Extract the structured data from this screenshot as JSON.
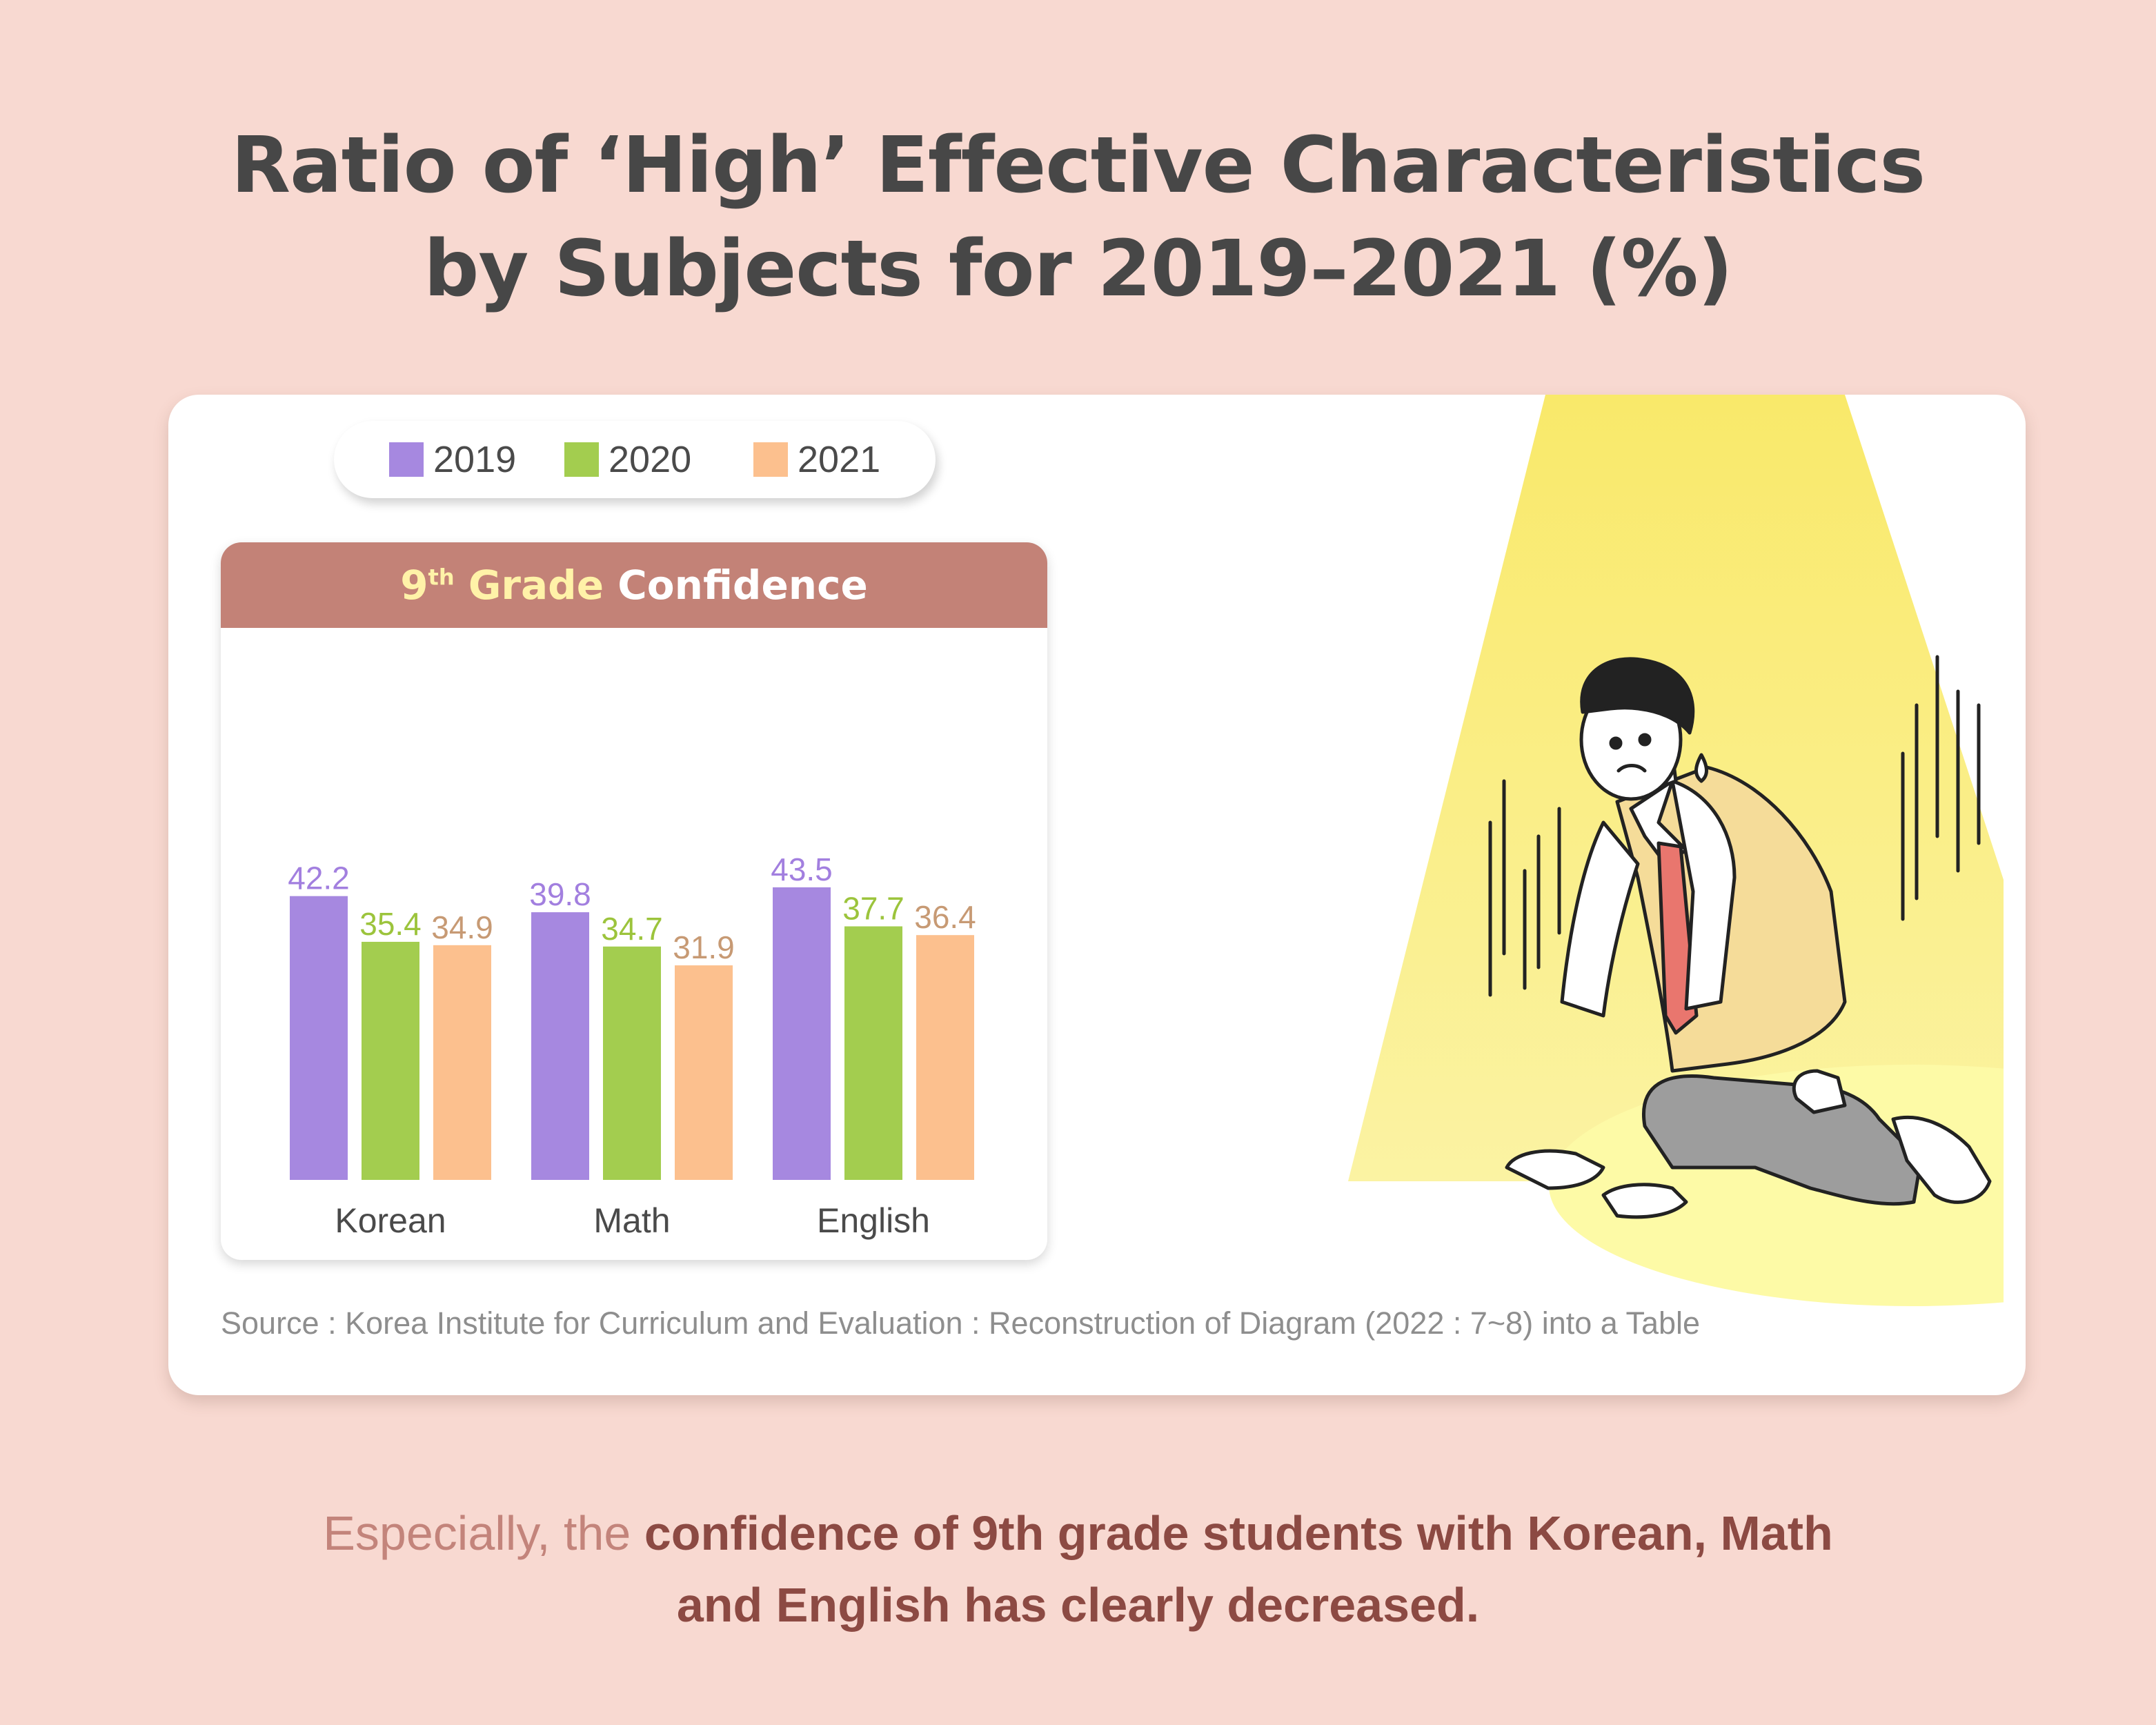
{
  "title": {
    "line1": "Ratio of ‘High’ Effective Characteristics",
    "line2": "by Subjects for 2019–2021 (%)"
  },
  "chart_data": {
    "type": "bar",
    "title_grade": "9",
    "title_grade_suffix": "th",
    "title_grade_word": "Grade",
    "title_rest": "Confidence",
    "categories": [
      "Korean",
      "Math",
      "English"
    ],
    "series": [
      {
        "name": "2019",
        "color": "#a688e0",
        "values": [
          42.2,
          39.8,
          43.5
        ]
      },
      {
        "name": "2020",
        "color": "#a3cd4f",
        "values": [
          35.4,
          34.7,
          37.7
        ]
      },
      {
        "name": "2021",
        "color": "#fcc08e",
        "values": [
          34.9,
          31.9,
          36.4
        ]
      }
    ],
    "label_colors": [
      "#a27fdf",
      "#9cc43c",
      "#c79a74"
    ],
    "ylim": [
      0,
      43.5
    ],
    "legend_position": "top",
    "grid": false
  },
  "source": "Source : Korea Institute for Curriculum and Evaluation : Reconstruction of Diagram (2022 : 7~8) into a Table",
  "caption": {
    "part1": "Especially, the ",
    "part2": "confidence of 9th grade students with Korean, Math",
    "line2": "and English has clearly decreased."
  }
}
